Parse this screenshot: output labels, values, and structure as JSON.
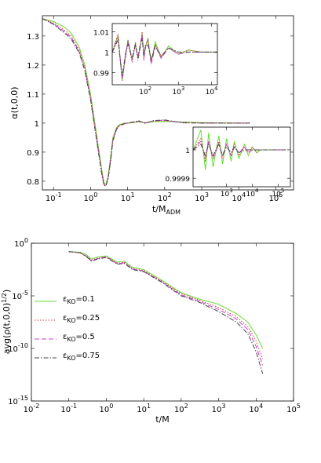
{
  "figure": {
    "background": "#ffffff",
    "series_styles": [
      {
        "name": "εKO=0.1",
        "color": "#66dd33",
        "dash": ""
      },
      {
        "name": "εKO=0.25",
        "color": "#d23a3a",
        "dash": "1.5,2"
      },
      {
        "name": "εKO=0.5",
        "color": "#c83ccc",
        "dash": "6,3"
      },
      {
        "name": "εKO=0.75",
        "color": "#444444",
        "dash": "6,2,1.5,2"
      }
    ]
  },
  "chart_data": [
    {
      "id": "top",
      "type": "line",
      "xscale": "log",
      "xlabel_main": "t/M",
      "xlabel_sub": "ADM",
      "ylabel": "α(t,0,0)",
      "xlim": [
        0.05,
        300000
      ],
      "ylim": [
        0.77,
        1.37
      ],
      "xticks": [
        "10^-1",
        "10^0",
        "10^1",
        "10^2",
        "10^3",
        "10^4",
        "10^5"
      ],
      "yticks": [
        "0.8",
        "0.9",
        "1",
        "1.1",
        "1.2",
        "1.3"
      ],
      "series": [
        {
          "color": "#66dd33",
          "dash": "",
          "x": [
            0.05,
            0.1,
            0.2,
            0.3,
            0.5,
            0.7,
            1.0,
            1.5,
            2.0,
            2.3,
            2.6,
            3.0,
            3.5,
            4.0,
            5.0,
            6.0,
            8.0,
            10,
            15,
            20,
            30,
            50,
            100,
            300,
            1000,
            3000,
            10000,
            20000
          ],
          "y": [
            1.36,
            1.35,
            1.33,
            1.31,
            1.26,
            1.2,
            1.1,
            0.95,
            0.84,
            0.795,
            0.79,
            0.82,
            0.89,
            0.95,
            0.985,
            0.995,
            1.0,
            1.0,
            1.002,
            1.004,
            1.002,
            1.005,
            1.006,
            1.004,
            1.002,
            1.001,
            1.0,
            1.0
          ]
        },
        {
          "color": "#d23a3a",
          "dash": "1.5,2",
          "x": [
            0.05,
            0.1,
            0.2,
            0.3,
            0.5,
            0.7,
            1.0,
            1.5,
            2.0,
            2.3,
            2.6,
            3.0,
            3.5,
            4.0,
            5.0,
            6.0,
            8.0,
            10,
            15,
            20,
            30,
            50,
            100,
            300,
            1000,
            3000,
            10000,
            20000
          ],
          "y": [
            1.36,
            1.345,
            1.32,
            1.3,
            1.25,
            1.19,
            1.09,
            0.94,
            0.835,
            0.79,
            0.785,
            0.815,
            0.88,
            0.945,
            0.982,
            0.993,
            0.998,
            1.0,
            1.003,
            1.006,
            1.001,
            1.007,
            1.008,
            1.003,
            1.001,
            1.0,
            1.0,
            1.0
          ]
        },
        {
          "color": "#c83ccc",
          "dash": "6,3",
          "x": [
            0.05,
            0.1,
            0.2,
            0.3,
            0.5,
            0.7,
            1.0,
            1.5,
            2.0,
            2.3,
            2.6,
            3.0,
            3.5,
            4.0,
            5.0,
            6.0,
            8.0,
            10,
            15,
            20,
            30,
            50,
            100,
            300,
            1000,
            3000,
            10000,
            20000
          ],
          "y": [
            1.36,
            1.342,
            1.315,
            1.295,
            1.245,
            1.185,
            1.085,
            0.935,
            0.83,
            0.788,
            0.784,
            0.812,
            0.875,
            0.94,
            0.98,
            0.992,
            0.998,
            1.0,
            1.004,
            1.007,
            1.0,
            1.008,
            1.01,
            1.002,
            1.0,
            1.0,
            1.0,
            1.0
          ]
        },
        {
          "color": "#444444",
          "dash": "6,2,1.5,2",
          "x": [
            0.05,
            0.1,
            0.2,
            0.3,
            0.5,
            0.7,
            1.0,
            1.5,
            2.0,
            2.3,
            2.6,
            3.0,
            3.5,
            4.0,
            5.0,
            6.0,
            8.0,
            10,
            15,
            20,
            30,
            50,
            100,
            300,
            1000,
            3000,
            10000,
            20000
          ],
          "y": [
            1.36,
            1.34,
            1.31,
            1.29,
            1.24,
            1.18,
            1.08,
            0.93,
            0.825,
            0.786,
            0.783,
            0.81,
            0.872,
            0.938,
            0.978,
            0.991,
            0.997,
            1.0,
            1.005,
            1.008,
            0.999,
            1.009,
            1.011,
            1.001,
            1.0,
            1.0,
            1.0,
            1.0
          ]
        }
      ]
    },
    {
      "id": "inset1",
      "type": "line",
      "xscale": "log",
      "xlim": [
        10,
        15000
      ],
      "ylim": [
        0.984,
        1.014
      ],
      "xticks": [
        "10^2",
        "10^3",
        "10^4"
      ],
      "yticks": [
        "0.99",
        "1",
        "1.01"
      ],
      "series": [
        {
          "color": "#66dd33",
          "dash": "",
          "x": [
            10,
            15,
            20,
            25,
            30,
            40,
            50,
            60,
            70,
            80,
            90,
            100,
            120,
            150,
            200,
            300,
            500,
            1000,
            2000,
            5000,
            10000,
            15000
          ],
          "y": [
            1.0,
            1.008,
            0.986,
            0.998,
            1.006,
            0.996,
            1.004,
            0.997,
            1.003,
            1.009,
            0.998,
            1.002,
            1.007,
            0.995,
            1.005,
            0.997,
            1.003,
            0.999,
            1.001,
            1.0,
            1.0,
            1.0
          ]
        },
        {
          "color": "#d23a3a",
          "dash": "1.5,2",
          "x": [
            10,
            15,
            20,
            25,
            30,
            40,
            50,
            60,
            70,
            80,
            90,
            100,
            120,
            150,
            200,
            300,
            500,
            1000,
            2000,
            5000,
            10000,
            15000
          ],
          "y": [
            1.0,
            1.009,
            0.986,
            0.998,
            1.005,
            0.995,
            1.005,
            0.996,
            1.002,
            1.01,
            0.997,
            1.004,
            1.005,
            0.996,
            1.004,
            0.998,
            1.002,
            0.999,
            1.001,
            1.0,
            1.0,
            1.0
          ]
        },
        {
          "color": "#c83ccc",
          "dash": "6,3",
          "x": [
            10,
            15,
            20,
            25,
            30,
            40,
            50,
            60,
            70,
            80,
            90,
            100,
            120,
            150,
            200,
            300,
            500,
            1000,
            2000,
            5000,
            10000,
            15000
          ],
          "y": [
            1.0,
            1.007,
            0.987,
            0.997,
            1.006,
            0.996,
            1.003,
            0.998,
            1.004,
            1.008,
            0.996,
            1.003,
            1.006,
            0.994,
            1.003,
            0.997,
            1.002,
            0.999,
            1.0,
            1.0,
            1.0,
            1.0
          ]
        },
        {
          "color": "#444444",
          "dash": "6,2,1.5,2",
          "x": [
            10,
            15,
            20,
            25,
            30,
            40,
            50,
            60,
            70,
            80,
            90,
            100,
            120,
            150,
            200,
            300,
            500,
            1000,
            2000,
            5000,
            10000,
            15000
          ],
          "y": [
            1.0,
            1.006,
            0.988,
            0.999,
            1.004,
            0.997,
            1.004,
            0.997,
            1.003,
            1.007,
            0.998,
            1.002,
            1.004,
            0.996,
            1.003,
            0.998,
            1.002,
            1.0,
            1.0,
            1.0,
            1.0,
            1.0
          ]
        }
      ]
    },
    {
      "id": "inset2",
      "type": "line",
      "xscale": "log",
      "xlim": [
        50,
        300000
      ],
      "ylim": [
        0.99987,
        1.00008
      ],
      "xticks": [
        "10^3",
        "10^4",
        "10^5"
      ],
      "yticks": [
        "0.9999",
        "1"
      ],
      "series": [
        {
          "color": "#66dd33",
          "dash": "",
          "x": [
            50,
            100,
            150,
            200,
            300,
            500,
            700,
            1000,
            1500,
            2000,
            3000,
            5000,
            7000,
            10000,
            15000,
            20000,
            30000,
            50000,
            100000,
            200000
          ],
          "y": [
            1.0,
            1.00007,
            0.99993,
            1.00006,
            0.99994,
            1.00005,
            0.99995,
            1.00004,
            0.99996,
            1.00003,
            0.99997,
            1.00002,
            0.99998,
            1.00001,
            0.99999,
            1.0,
            1.0,
            1.0,
            1.0,
            1.0
          ]
        },
        {
          "color": "#d23a3a",
          "dash": "1.5,2",
          "x": [
            50,
            100,
            150,
            200,
            300,
            500,
            700,
            1000,
            1500,
            2000,
            3000,
            5000,
            7000,
            10000,
            15000,
            20000,
            30000,
            50000,
            100000,
            200000
          ],
          "y": [
            1.0,
            1.00004,
            0.99996,
            1.00003,
            0.99997,
            1.00003,
            0.99997,
            1.00002,
            0.99998,
            1.00002,
            0.99998,
            1.00001,
            0.99999,
            1.00001,
            0.99999,
            1.0,
            1.0,
            1.0,
            1.0,
            1.0
          ]
        },
        {
          "color": "#c83ccc",
          "dash": "6,3",
          "x": [
            50,
            100,
            150,
            200,
            300,
            500,
            700,
            1000,
            1500,
            2000,
            3000,
            5000,
            7000,
            10000,
            15000,
            20000,
            30000,
            50000,
            100000,
            200000
          ],
          "y": [
            1.0,
            1.00003,
            0.99997,
            1.00003,
            0.99997,
            1.00002,
            0.99998,
            1.00002,
            0.99998,
            1.00001,
            0.99999,
            1.00001,
            0.99999,
            1.0,
            1.0,
            1.0,
            1.0,
            1.0,
            1.0,
            1.0
          ]
        },
        {
          "color": "#444444",
          "dash": "6,2,1.5,2",
          "x": [
            50,
            100,
            150,
            200,
            300,
            500,
            700,
            1000,
            1500,
            2000,
            3000,
            5000,
            7000,
            10000,
            15000,
            20000,
            30000,
            50000,
            100000,
            200000
          ],
          "y": [
            1.0,
            1.00002,
            0.99998,
            1.00002,
            0.99998,
            1.00002,
            0.99998,
            1.00001,
            0.99999,
            1.00001,
            0.99999,
            1.0,
            1.0,
            1.0,
            1.0,
            1.0,
            1.0,
            1.0,
            1.0,
            1.0
          ]
        }
      ]
    },
    {
      "id": "bottom",
      "type": "line",
      "xscale": "log",
      "yscale": "log",
      "xlabel": "t/M",
      "ylabel": "avg(ρ(t,0,0)",
      "ylabel_sup": "1/2",
      "ylabel_end": ")",
      "xlim": [
        0.01,
        100000
      ],
      "ylim_exp": [
        -15,
        0
      ],
      "xticks": [
        "10^-2",
        "10^-1",
        "10^0",
        "10^1",
        "10^2",
        "10^3",
        "10^4",
        "10^5"
      ],
      "yticks": [
        "10^0",
        "10^-5",
        "10^-10",
        "10^-15"
      ],
      "legend": {
        "position": "left",
        "entries": [
          {
            "label": "ε",
            "sub": "KO",
            "value": "=0.1"
          },
          {
            "label": "ε",
            "sub": "KO",
            "value": "=0.25"
          },
          {
            "label": "ε",
            "sub": "KO",
            "value": "=0.5"
          },
          {
            "label": "ε",
            "sub": "KO",
            "value": "=0.75"
          }
        ]
      },
      "series": [
        {
          "color": "#66dd33",
          "dash": "",
          "x": [
            0.1,
            0.2,
            0.3,
            0.4,
            0.6,
            1.0,
            2.0,
            3.0,
            5.0,
            10,
            30,
            100,
            300,
            1000,
            3000,
            6000,
            10000,
            15000
          ],
          "log10y": [
            -0.8,
            -0.85,
            -1.1,
            -1.5,
            -1.3,
            -1.2,
            -1.8,
            -1.7,
            -2.3,
            -2.5,
            -3.5,
            -4.7,
            -5.3,
            -5.8,
            -6.7,
            -7.5,
            -8.7,
            -10.0
          ]
        },
        {
          "color": "#d23a3a",
          "dash": "1.5,2",
          "x": [
            0.1,
            0.2,
            0.3,
            0.4,
            0.6,
            1.0,
            2.0,
            3.0,
            5.0,
            10,
            30,
            100,
            300,
            1000,
            3000,
            6000,
            10000,
            15000
          ],
          "log10y": [
            -0.8,
            -0.9,
            -1.2,
            -1.6,
            -1.4,
            -1.25,
            -1.9,
            -1.8,
            -2.4,
            -2.6,
            -3.6,
            -4.8,
            -5.4,
            -6.1,
            -7.0,
            -7.9,
            -9.3,
            -11.0
          ]
        },
        {
          "color": "#c83ccc",
          "dash": "6,3",
          "x": [
            0.1,
            0.2,
            0.3,
            0.4,
            0.6,
            1.0,
            2.0,
            3.0,
            5.0,
            10,
            30,
            100,
            300,
            1000,
            3000,
            6000,
            10000,
            15000
          ],
          "log10y": [
            -0.8,
            -0.9,
            -1.25,
            -1.65,
            -1.45,
            -1.3,
            -1.95,
            -1.85,
            -2.45,
            -2.65,
            -3.65,
            -4.9,
            -5.5,
            -6.3,
            -7.2,
            -8.2,
            -9.8,
            -11.6
          ]
        },
        {
          "color": "#444444",
          "dash": "6,2,1.5,2",
          "x": [
            0.1,
            0.2,
            0.3,
            0.4,
            0.6,
            1.0,
            2.0,
            3.0,
            5.0,
            10,
            30,
            100,
            300,
            1000,
            3000,
            6000,
            10000,
            15000
          ],
          "log10y": [
            -0.8,
            -0.9,
            -1.3,
            -1.7,
            -1.5,
            -1.35,
            -2.0,
            -1.9,
            -2.5,
            -2.7,
            -3.7,
            -5.0,
            -5.6,
            -6.5,
            -7.5,
            -8.6,
            -10.3,
            -12.4
          ]
        }
      ]
    }
  ]
}
